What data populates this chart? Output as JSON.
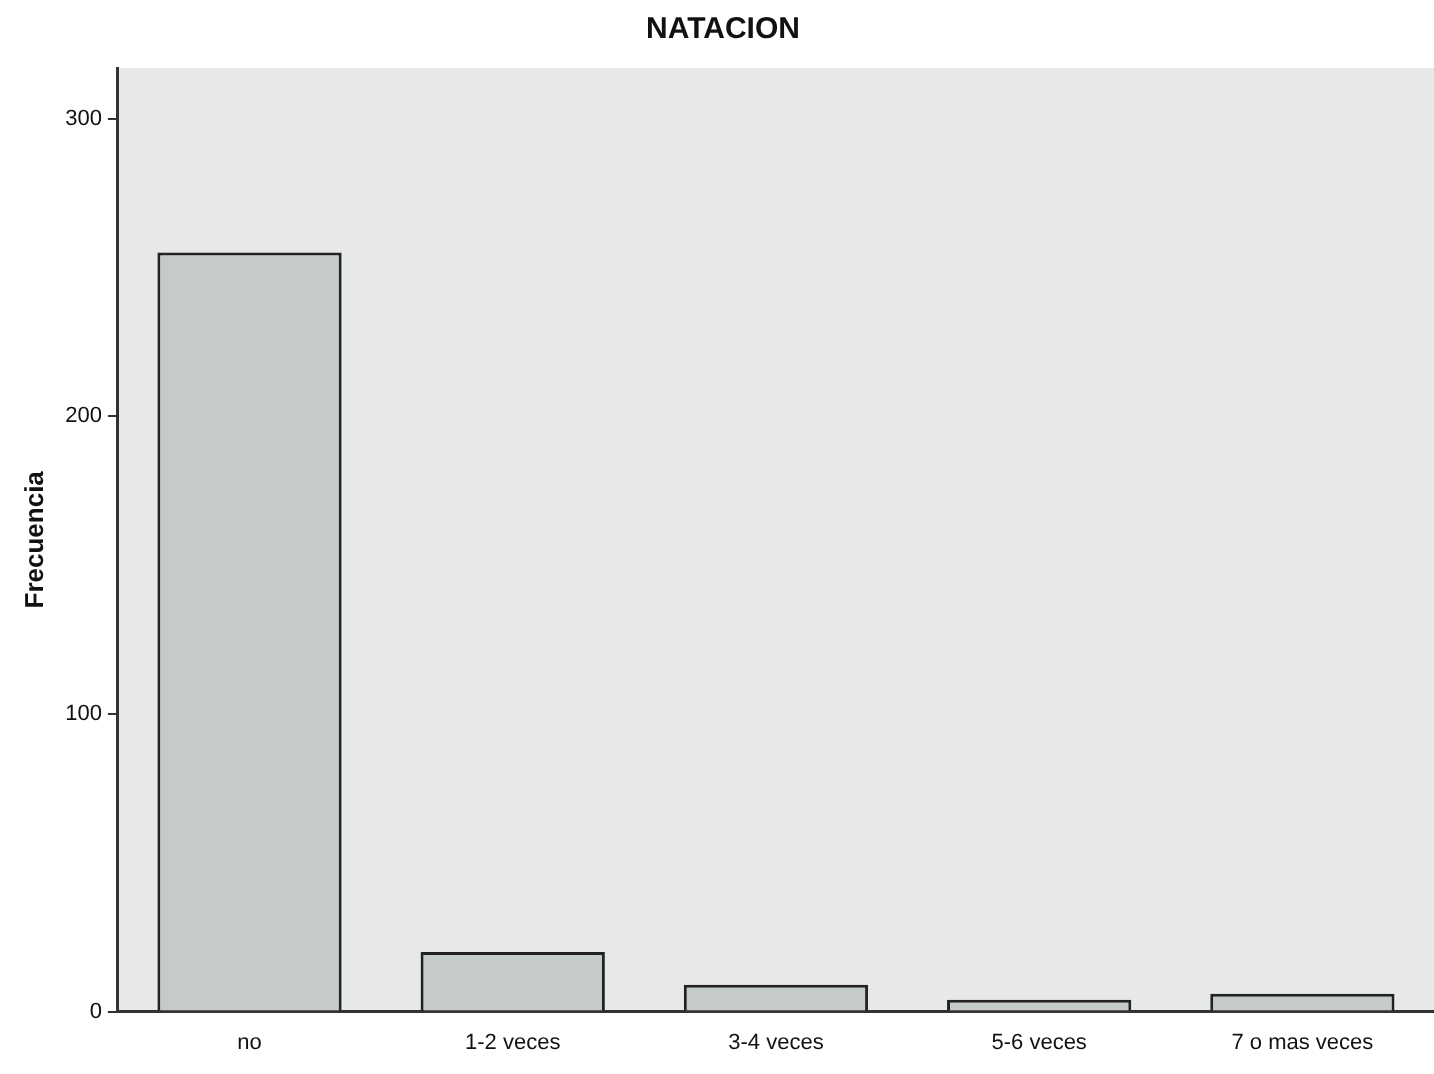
{
  "chart_data": {
    "type": "bar",
    "title": "NATACION",
    "ylabel": "Frecuencia",
    "categories": [
      "no",
      "1-2 veces",
      "3-4 veces",
      "5-6 veces",
      "7 o mas veces"
    ],
    "values": [
      255,
      20,
      9,
      4,
      6
    ],
    "color": "#c5ccc8",
    "ylim": [
      0,
      317
    ],
    "yticks": [
      0,
      100,
      200,
      300
    ],
    "grid": false,
    "legend": false
  }
}
